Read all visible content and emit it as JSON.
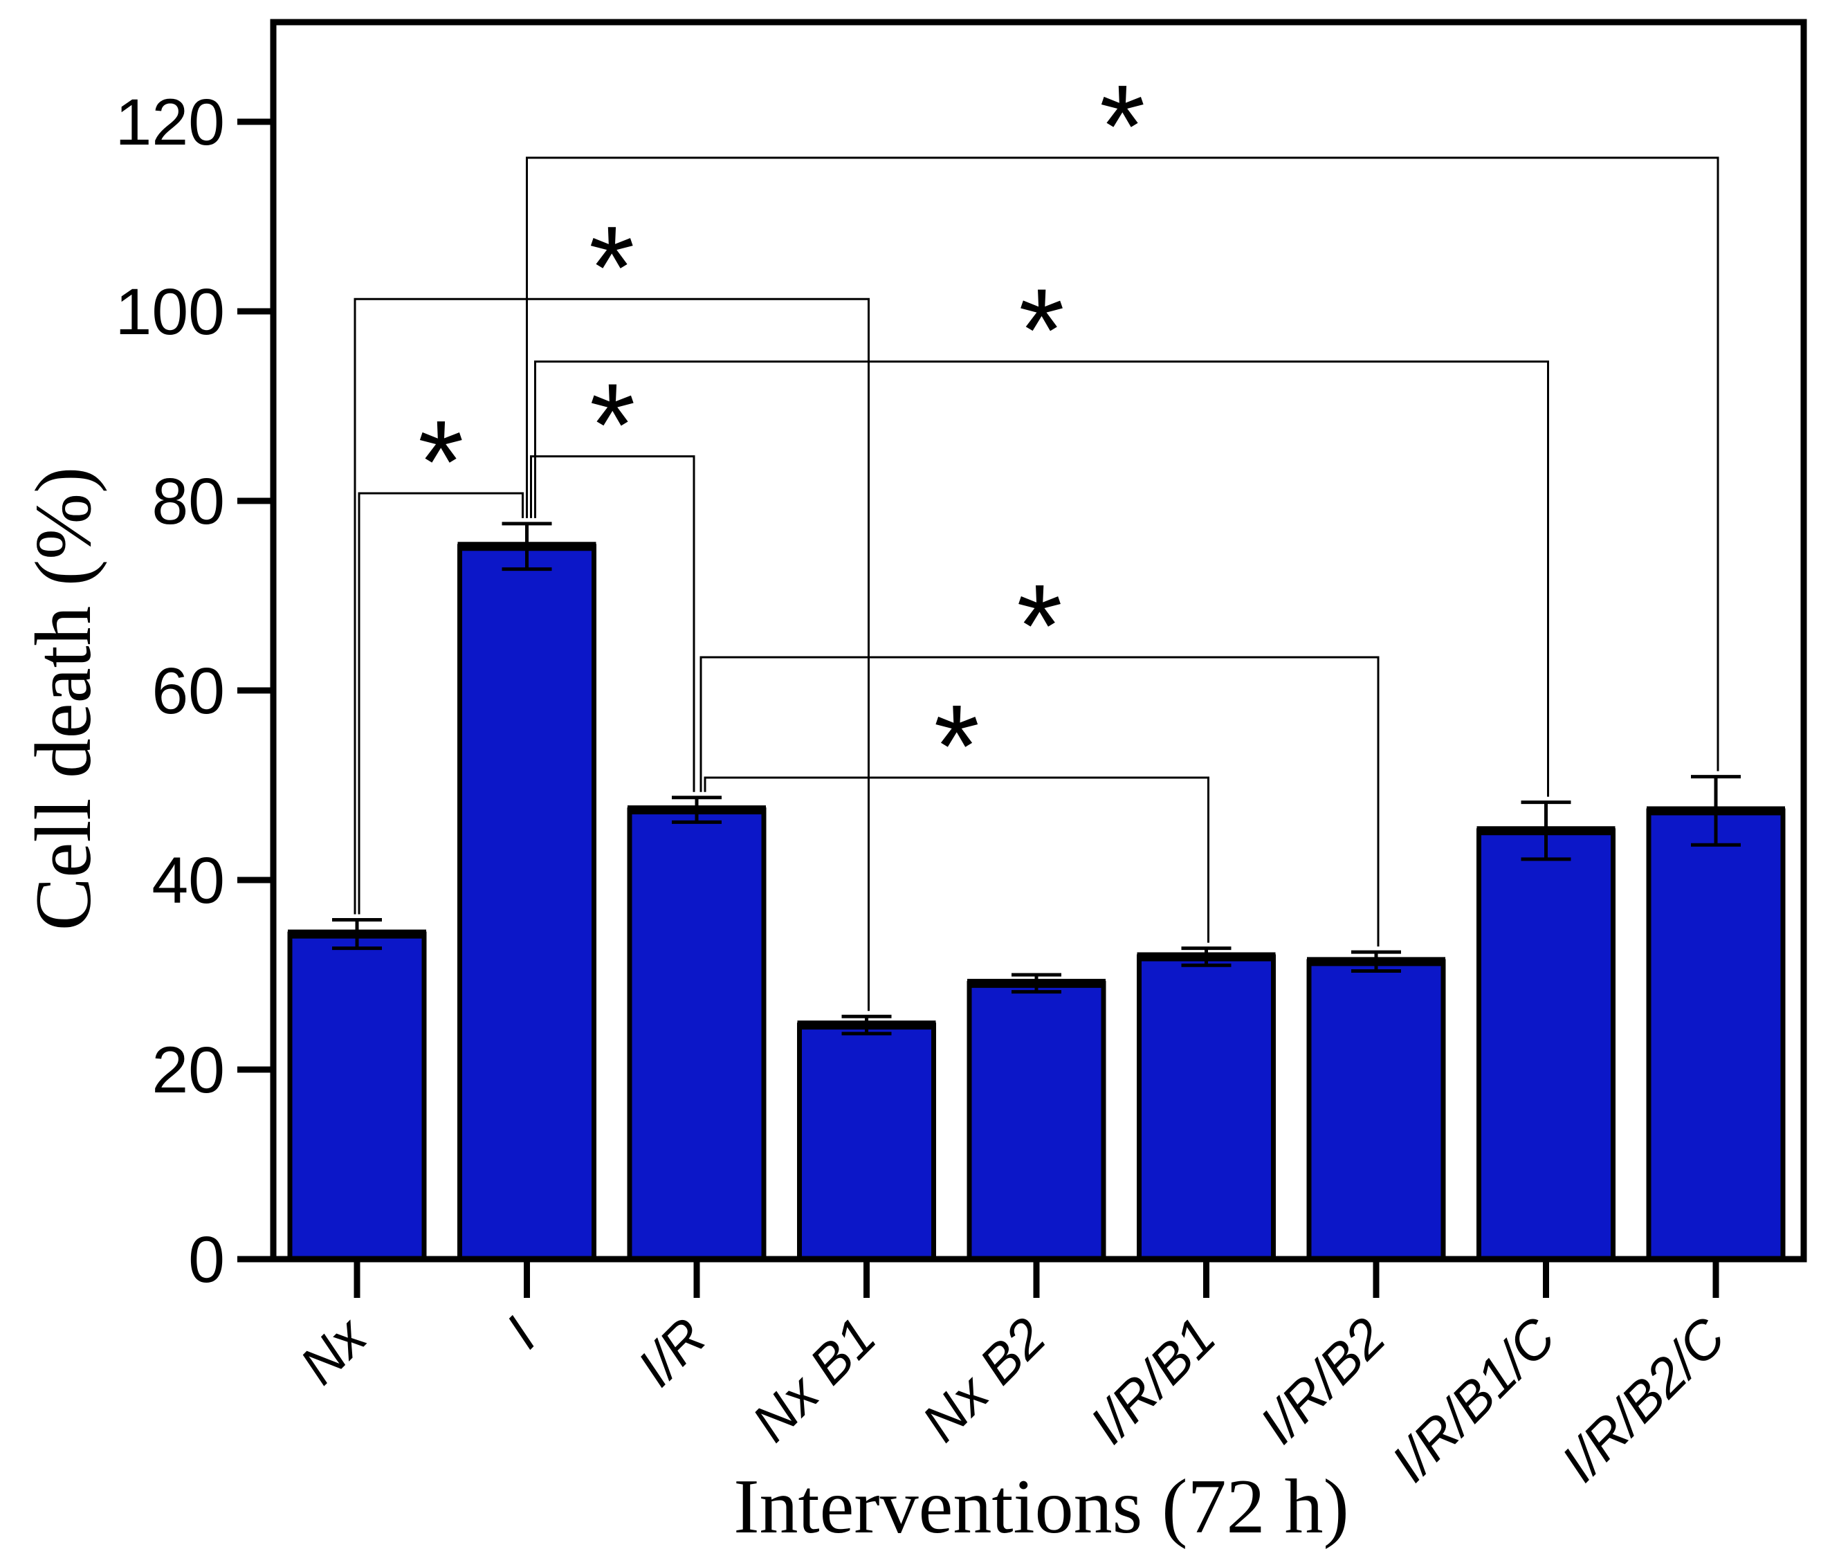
{
  "chart_data": {
    "type": "bar",
    "title": "",
    "xlabel": "Interventions (72 h)",
    "ylabel": "Cell death (%)",
    "categories": [
      "Nx",
      "I",
      "I/R",
      "Nx B1",
      "Nx B2",
      "I/R/B1",
      "I/R/B2",
      "I/R/B1/C",
      "I/R/B2/C"
    ],
    "values": [
      34.3,
      75.2,
      47.4,
      24.7,
      29.1,
      31.9,
      31.4,
      45.2,
      47.3
    ],
    "errors": [
      1.5,
      2.4,
      1.3,
      0.9,
      0.9,
      0.9,
      1.0,
      3.0,
      3.6
    ],
    "ylim": [
      0,
      130.5
    ],
    "yticks": [
      0,
      20,
      40,
      60,
      80,
      100,
      120
    ],
    "grid": false,
    "legend": null,
    "bar_color": "#0c17c8",
    "bar_edge_color": "#000000",
    "axis_color": "#000000",
    "significance_marker": "*",
    "brackets": [
      {
        "from": "I",
        "to": "I/R/B2/C",
        "level": 116.2,
        "from_dx": 0,
        "to_dx": 3
      },
      {
        "from": "Nx",
        "to": "Nx B1",
        "level": 101.3,
        "from_dx": -3,
        "to_dx": 3
      },
      {
        "from": "I",
        "to": "I/R/B1/C",
        "level": 94.7,
        "from_dx": 12,
        "to_dx": 3
      },
      {
        "from": "I",
        "to": "I/R",
        "level": 84.7,
        "from_dx": 6,
        "to_dx": -4
      },
      {
        "from": "Nx",
        "to": "I",
        "level": 80.8,
        "from_dx": 3,
        "to_dx": -6
      },
      {
        "from": "I/R",
        "to": "I/R/B2",
        "level": 63.5,
        "from_dx": 6,
        "to_dx": 3
      },
      {
        "from": "I/R",
        "to": "I/R/B1",
        "level": 50.8,
        "from_dx": 12,
        "to_dx": 3
      }
    ]
  }
}
